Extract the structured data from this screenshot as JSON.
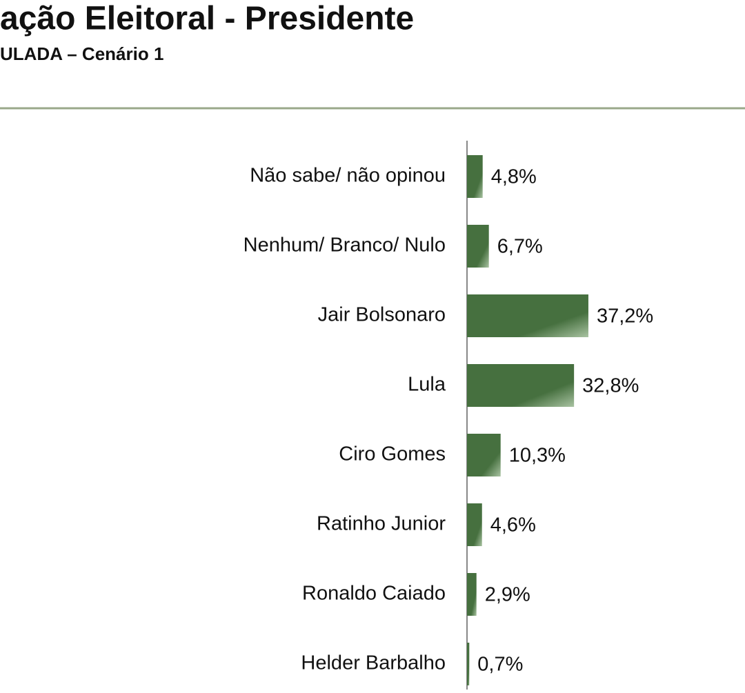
{
  "chart_data": {
    "type": "bar",
    "orientation": "horizontal",
    "title": "ação Eleitoral - Presidente",
    "subtitle": "ULADA – Cenário 1",
    "categories": [
      "Não sabe/ não opinou",
      "Nenhum/ Branco/ Nulo",
      "Jair Bolsonaro",
      "Lula",
      "Ciro Gomes",
      "Ratinho Junior",
      "Ronaldo Caiado",
      "Helder Barbalho"
    ],
    "values": [
      4.8,
      6.7,
      37.2,
      32.8,
      10.3,
      4.6,
      2.9,
      0.7
    ],
    "value_labels": [
      "4,8%",
      "6,7%",
      "37,2%",
      "32,8%",
      "10,3%",
      "4,6%",
      "2,9%",
      "0,7%"
    ],
    "color": "#46703f"
  }
}
